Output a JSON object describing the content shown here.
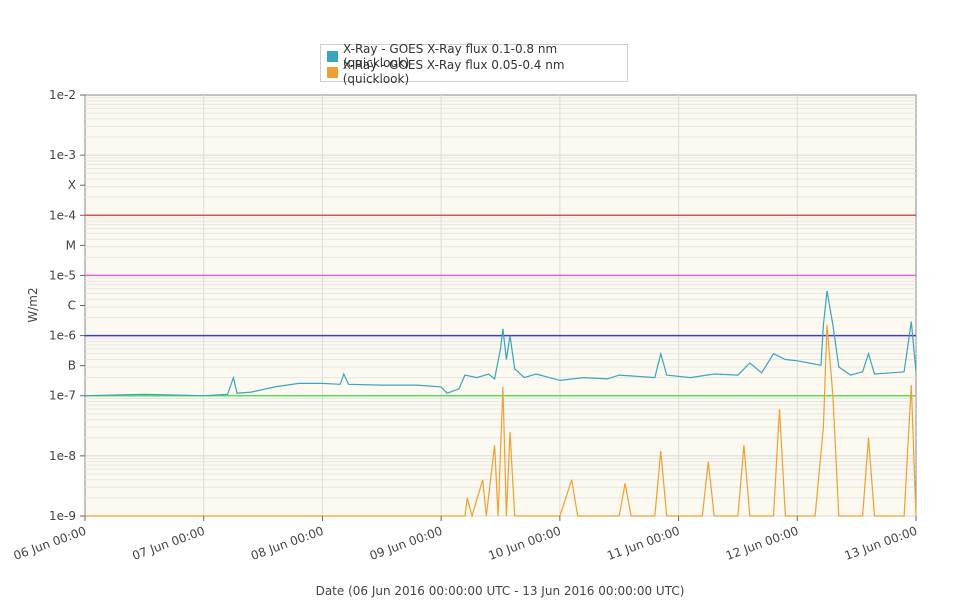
{
  "chart_data": {
    "type": "line",
    "x_axis": {
      "label": "Date (06 Jun 2016 00:00:00 UTC - 13 Jun 2016 00:00:00 UTC)",
      "ticks": [
        "06 Jun 00:00",
        "07 Jun 00:00",
        "08 Jun 00:00",
        "09 Jun 00:00",
        "10 Jun 00:00",
        "11 Jun 00:00",
        "12 Jun 00:00",
        "13 Jun 00:00"
      ],
      "range": [
        "2016-06-06 00:00",
        "2016-06-13 00:00"
      ]
    },
    "y_axis": {
      "label": "W/m2",
      "scale": "log",
      "range": [
        1e-09,
        0.01
      ],
      "ticks": [
        {
          "value": 1e-09,
          "label": "1e-9"
        },
        {
          "value": 1e-08,
          "label": "1e-8"
        },
        {
          "value": 1e-07,
          "label": "1e-7"
        },
        {
          "value": 3.16e-07,
          "label": "B"
        },
        {
          "value": 1e-06,
          "label": "1e-6"
        },
        {
          "value": 3.16e-06,
          "label": "C"
        },
        {
          "value": 1e-05,
          "label": "1e-5"
        },
        {
          "value": 3.16e-05,
          "label": "M"
        },
        {
          "value": 0.0001,
          "label": "1e-4"
        },
        {
          "value": 0.000316,
          "label": "X"
        },
        {
          "value": 0.001,
          "label": "1e-3"
        },
        {
          "value": 0.01,
          "label": "1e-2"
        }
      ]
    },
    "threshold_lines": [
      {
        "value": 0.0001,
        "color": "#d9534f"
      },
      {
        "value": 1e-05,
        "color": "#e066e0"
      },
      {
        "value": 1e-06,
        "color": "#3b3bd6"
      },
      {
        "value": 1e-07,
        "color": "#55e055"
      }
    ],
    "legend_position": "top-center",
    "grid": true,
    "series": [
      {
        "name": "X-Ray - GOES X-Ray flux 0.1-0.8 nm (quicklook)",
        "color": "#3aa6bd",
        "points": [
          [
            0.0,
            1e-07
          ],
          [
            0.5,
            1.05e-07
          ],
          [
            1.0,
            1e-07
          ],
          [
            1.2,
            1.05e-07
          ],
          [
            1.25,
            2e-07
          ],
          [
            1.28,
            1.1e-07
          ],
          [
            1.4,
            1.15e-07
          ],
          [
            1.6,
            1.4e-07
          ],
          [
            1.8,
            1.6e-07
          ],
          [
            2.0,
            1.6e-07
          ],
          [
            2.15,
            1.55e-07
          ],
          [
            2.18,
            2.3e-07
          ],
          [
            2.22,
            1.55e-07
          ],
          [
            2.5,
            1.5e-07
          ],
          [
            2.8,
            1.5e-07
          ],
          [
            3.0,
            1.4e-07
          ],
          [
            3.05,
            1.1e-07
          ],
          [
            3.15,
            1.3e-07
          ],
          [
            3.2,
            2.2e-07
          ],
          [
            3.3,
            2e-07
          ],
          [
            3.4,
            2.3e-07
          ],
          [
            3.45,
            1.9e-07
          ],
          [
            3.5,
            6e-07
          ],
          [
            3.52,
            1.3e-06
          ],
          [
            3.55,
            4e-07
          ],
          [
            3.58,
            1e-06
          ],
          [
            3.62,
            2.8e-07
          ],
          [
            3.7,
            2e-07
          ],
          [
            3.8,
            2.3e-07
          ],
          [
            4.0,
            1.8e-07
          ],
          [
            4.2,
            2e-07
          ],
          [
            4.4,
            1.9e-07
          ],
          [
            4.5,
            2.2e-07
          ],
          [
            4.8,
            2e-07
          ],
          [
            4.85,
            5e-07
          ],
          [
            4.9,
            2.2e-07
          ],
          [
            5.1,
            2e-07
          ],
          [
            5.3,
            2.3e-07
          ],
          [
            5.5,
            2.2e-07
          ],
          [
            5.6,
            3.5e-07
          ],
          [
            5.7,
            2.4e-07
          ],
          [
            5.8,
            5e-07
          ],
          [
            5.9,
            4e-07
          ],
          [
            6.0,
            3.8e-07
          ],
          [
            6.1,
            3.5e-07
          ],
          [
            6.2,
            3.2e-07
          ],
          [
            6.22,
            1.5e-06
          ],
          [
            6.25,
            5.5e-06
          ],
          [
            6.3,
            1.5e-06
          ],
          [
            6.35,
            3e-07
          ],
          [
            6.45,
            2.2e-07
          ],
          [
            6.55,
            2.5e-07
          ],
          [
            6.6,
            5e-07
          ],
          [
            6.65,
            2.3e-07
          ],
          [
            6.8,
            2.4e-07
          ],
          [
            6.9,
            2.5e-07
          ],
          [
            6.96,
            1.7e-06
          ],
          [
            7.0,
            2.5e-07
          ]
        ]
      },
      {
        "name": "X-Ray - GOES X-Ray flux 0.05-0.4 nm (quicklook)",
        "color": "#f0a030",
        "points": [
          [
            0.0,
            1e-09
          ],
          [
            3.2,
            1e-09
          ],
          [
            3.22,
            2e-09
          ],
          [
            3.26,
            1e-09
          ],
          [
            3.35,
            4e-09
          ],
          [
            3.38,
            1e-09
          ],
          [
            3.45,
            1.5e-08
          ],
          [
            3.48,
            1e-09
          ],
          [
            3.52,
            1.4e-07
          ],
          [
            3.55,
            1e-09
          ],
          [
            3.58,
            2.5e-08
          ],
          [
            3.62,
            1e-09
          ],
          [
            4.0,
            1e-09
          ],
          [
            4.1,
            4e-09
          ],
          [
            4.15,
            1e-09
          ],
          [
            4.5,
            1e-09
          ],
          [
            4.55,
            3.5e-09
          ],
          [
            4.6,
            1e-09
          ],
          [
            4.8,
            1e-09
          ],
          [
            4.85,
            1.2e-08
          ],
          [
            4.9,
            1e-09
          ],
          [
            5.2,
            1e-09
          ],
          [
            5.25,
            8e-09
          ],
          [
            5.3,
            1e-09
          ],
          [
            5.5,
            1e-09
          ],
          [
            5.55,
            1.5e-08
          ],
          [
            5.6,
            1e-09
          ],
          [
            5.8,
            1e-09
          ],
          [
            5.85,
            6e-08
          ],
          [
            5.9,
            1e-09
          ],
          [
            6.15,
            1e-09
          ],
          [
            6.22,
            3e-08
          ],
          [
            6.25,
            1.5e-06
          ],
          [
            6.3,
            1e-07
          ],
          [
            6.35,
            1e-09
          ],
          [
            6.55,
            1e-09
          ],
          [
            6.6,
            2e-08
          ],
          [
            6.65,
            1e-09
          ],
          [
            6.9,
            1e-09
          ],
          [
            6.96,
            1.5e-07
          ],
          [
            7.0,
            1e-09
          ]
        ]
      }
    ]
  }
}
